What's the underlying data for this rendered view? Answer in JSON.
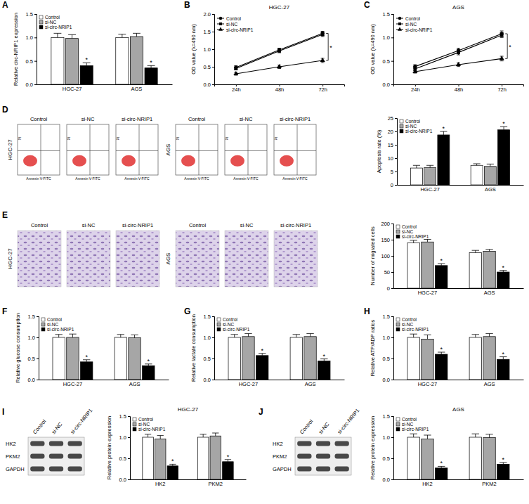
{
  "chart_data": [
    {
      "type": "bar",
      "y_label": "Relative circ-NRIP1 expression",
      "categories": [
        "HGC-27",
        "AGS"
      ],
      "ylim": [
        0,
        1.5
      ],
      "yticks": [
        {
          "value": 0,
          "label": "0.0"
        },
        0.5,
        {
          "value": 1,
          "label": "1.0"
        },
        1.5
      ],
      "legend": "upper left",
      "series": [
        {
          "name": "Control",
          "color": "#ffffff",
          "values": [
            1.0,
            1.0
          ],
          "errors": [
            0.09,
            0.07
          ]
        },
        {
          "name": "si-NC",
          "color": "#a6a6a6",
          "values": [
            0.98,
            1.02
          ],
          "errors": [
            0.08,
            0.07
          ]
        },
        {
          "name": "si-circ-NRIP1",
          "color": "#000000",
          "values": [
            0.4,
            0.35
          ],
          "errors": [
            0.06,
            0.05
          ],
          "significance": [
            "*",
            "*"
          ]
        }
      ]
    },
    {
      "type": "line",
      "title": "HGC-27",
      "y_label": "OD value (λ=490 nm)",
      "categories": [
        "24h",
        "48h",
        "72h"
      ],
      "ylim": [
        0,
        2
      ],
      "yticks": [
        {
          "value": 0,
          "label": "0.0"
        },
        0.5,
        {
          "value": 1,
          "label": "1.0"
        },
        1.5,
        {
          "value": 2,
          "label": "2.0"
        }
      ],
      "legend": "upper left",
      "series": [
        {
          "name": "Control",
          "color": "#000000",
          "marker": "circle",
          "values": [
            0.48,
            0.98,
            1.45
          ],
          "errors": [
            0.05,
            0.05,
            0.06
          ]
        },
        {
          "name": "si-NC",
          "color": "#000000",
          "marker": "square",
          "values": [
            0.45,
            0.95,
            1.42
          ],
          "errors": [
            0.04,
            0.05,
            0.06
          ]
        },
        {
          "name": "si-circ-NRIP1",
          "color": "#000000",
          "marker": "triangle",
          "values": [
            0.3,
            0.5,
            0.68
          ],
          "errors": [
            0.04,
            0.05,
            0.06
          ]
        }
      ],
      "annotations": [
        {
          "text": "*",
          "x": 2
        }
      ]
    },
    {
      "type": "line",
      "title": "AGS",
      "y_label": "OD value (λ=490 nm)",
      "categories": [
        "24h",
        "48h",
        "72h"
      ],
      "ylim": [
        0,
        1.5
      ],
      "yticks": [
        {
          "value": 0,
          "label": "0.0"
        },
        0.5,
        {
          "value": 1,
          "label": "1.0"
        },
        1.5
      ],
      "legend": "upper left",
      "series": [
        {
          "name": "Control",
          "color": "#000000",
          "marker": "circle",
          "values": [
            0.38,
            0.72,
            1.08
          ],
          "errors": [
            0.04,
            0.05,
            0.06
          ]
        },
        {
          "name": "si-NC",
          "color": "#000000",
          "marker": "square",
          "values": [
            0.33,
            0.68,
            1.05
          ],
          "errors": [
            0.04,
            0.05,
            0.05
          ]
        },
        {
          "name": "si-circ-NRIP1",
          "color": "#000000",
          "marker": "triangle",
          "values": [
            0.27,
            0.42,
            0.55
          ],
          "errors": [
            0.03,
            0.04,
            0.05
          ]
        }
      ],
      "annotations": [
        {
          "text": "*",
          "x": 2
        }
      ]
    },
    {
      "type": "bar",
      "y_label": "Apoptosis rate (%)",
      "categories": [
        "HGC-27",
        "AGS"
      ],
      "ylim": [
        0,
        25
      ],
      "yticks": [
        0,
        5,
        10,
        15,
        20,
        25
      ],
      "legend": "upper left",
      "series": [
        {
          "name": "Control",
          "color": "#ffffff",
          "values": [
            6.3,
            7.3
          ],
          "errors": [
            1.0,
            0.6
          ]
        },
        {
          "name": "si-NC",
          "color": "#a6a6a6",
          "values": [
            6.5,
            6.9
          ],
          "errors": [
            0.8,
            0.9
          ]
        },
        {
          "name": "si-circ-NRIP1",
          "color": "#000000",
          "values": [
            18.7,
            20.6
          ],
          "errors": [
            1.3,
            1.2
          ],
          "significance": [
            "*",
            "*"
          ]
        }
      ]
    },
    {
      "type": "bar",
      "y_label": "Number of migrated cells",
      "categories": [
        "HGC-27",
        "AGS"
      ],
      "ylim": [
        0,
        200
      ],
      "yticks": [
        0,
        50,
        100,
        150,
        200
      ],
      "legend": "upper left",
      "series": [
        {
          "name": "Control",
          "color": "#ffffff",
          "values": [
            140,
            110
          ],
          "errors": [
            8,
            7
          ]
        },
        {
          "name": "si-NC",
          "color": "#a6a6a6",
          "values": [
            143,
            114
          ],
          "errors": [
            8,
            6
          ]
        },
        {
          "name": "si-circ-NRIP1",
          "color": "#000000",
          "values": [
            70,
            50
          ],
          "errors": [
            6,
            5
          ],
          "significance": [
            "*",
            "*"
          ]
        }
      ]
    },
    {
      "type": "bar",
      "y_label": "Relative glucose consumption",
      "categories": [
        "HGC-27",
        "AGS"
      ],
      "ylim": [
        0,
        1.5
      ],
      "yticks": [
        {
          "value": 0,
          "label": "0.0"
        },
        0.5,
        {
          "value": 1,
          "label": "1.0"
        },
        1.5
      ],
      "legend": "upper left",
      "series": [
        {
          "name": "Control",
          "color": "#ffffff",
          "values": [
            1.0,
            1.0
          ],
          "errors": [
            0.07,
            0.07
          ]
        },
        {
          "name": "si-NC",
          "color": "#a6a6a6",
          "values": [
            1.0,
            0.99
          ],
          "errors": [
            0.08,
            0.07
          ]
        },
        {
          "name": "si-circ-NRIP1",
          "color": "#000000",
          "values": [
            0.42,
            0.33
          ],
          "errors": [
            0.05,
            0.04
          ],
          "significance": [
            "*",
            "*"
          ]
        }
      ]
    },
    {
      "type": "bar",
      "y_label": "Relative lactate consumption",
      "categories": [
        "HGC-27",
        "AGS"
      ],
      "ylim": [
        0,
        1.5
      ],
      "yticks": [
        {
          "value": 0,
          "label": "0.0"
        },
        0.5,
        {
          "value": 1,
          "label": "1.0"
        },
        1.5
      ],
      "legend": "upper left",
      "series": [
        {
          "name": "Control",
          "color": "#ffffff",
          "values": [
            1.0,
            1.0
          ],
          "errors": [
            0.07,
            0.07
          ]
        },
        {
          "name": "si-NC",
          "color": "#a6a6a6",
          "values": [
            1.02,
            1.02
          ],
          "errors": [
            0.07,
            0.07
          ]
        },
        {
          "name": "si-circ-NRIP1",
          "color": "#000000",
          "values": [
            0.57,
            0.44
          ],
          "errors": [
            0.05,
            0.05
          ],
          "significance": [
            "*",
            "*"
          ]
        }
      ]
    },
    {
      "type": "bar",
      "y_label": "Relative ATP/ADP ratios",
      "categories": [
        "HGC-27",
        "AGS"
      ],
      "ylim": [
        0,
        1.5
      ],
      "yticks": [
        {
          "value": 0,
          "label": "0.0"
        },
        0.5,
        {
          "value": 1,
          "label": "1.0"
        },
        1.5
      ],
      "legend": "upper left",
      "series": [
        {
          "name": "Control",
          "color": "#ffffff",
          "values": [
            1.0,
            1.0
          ],
          "errors": [
            0.08,
            0.07
          ]
        },
        {
          "name": "si-NC",
          "color": "#a6a6a6",
          "values": [
            0.96,
            1.02
          ],
          "errors": [
            0.1,
            0.07
          ]
        },
        {
          "name": "si-circ-NRIP1",
          "color": "#000000",
          "values": [
            0.6,
            0.48
          ],
          "errors": [
            0.05,
            0.06
          ],
          "significance": [
            "*",
            "*"
          ]
        }
      ]
    },
    {
      "type": "bar",
      "title": "HGC-27",
      "y_label": "Relative protein expression",
      "categories": [
        "HK2",
        "PKM2"
      ],
      "ylim": [
        0,
        1.5
      ],
      "yticks": [
        {
          "value": 0,
          "label": "0.0"
        },
        0.5,
        {
          "value": 1,
          "label": "1.0"
        },
        1.5
      ],
      "legend": "upper left",
      "series": [
        {
          "name": "Control",
          "color": "#ffffff",
          "values": [
            1.0,
            1.0
          ],
          "errors": [
            0.07,
            0.07
          ]
        },
        {
          "name": "si-NC",
          "color": "#a6a6a6",
          "values": [
            0.96,
            1.03
          ],
          "errors": [
            0.08,
            0.07
          ]
        },
        {
          "name": "si-circ-NRIP1",
          "color": "#000000",
          "values": [
            0.32,
            0.42
          ],
          "errors": [
            0.04,
            0.05
          ],
          "significance": [
            "*",
            "*"
          ]
        }
      ]
    },
    {
      "type": "bar",
      "title": "AGS",
      "y_label": "Relative protein expression",
      "categories": [
        "HK2",
        "PKM2"
      ],
      "ylim": [
        0,
        1.5
      ],
      "yticks": [
        {
          "value": 0,
          "label": "0.0"
        },
        0.5,
        {
          "value": 1,
          "label": "1.0"
        },
        1.5
      ],
      "legend": "upper left",
      "series": [
        {
          "name": "Control",
          "color": "#ffffff",
          "values": [
            1.0,
            1.0
          ],
          "errors": [
            0.08,
            0.08
          ]
        },
        {
          "name": "si-NC",
          "color": "#a6a6a6",
          "values": [
            0.96,
            0.99
          ],
          "errors": [
            0.09,
            0.08
          ]
        },
        {
          "name": "si-circ-NRIP1",
          "color": "#000000",
          "values": [
            0.27,
            0.36
          ],
          "errors": [
            0.04,
            0.04
          ],
          "significance": [
            "*",
            "*"
          ]
        }
      ]
    }
  ],
  "panel_labels": [
    "A",
    "B",
    "C",
    "D",
    "E",
    "F",
    "G",
    "H",
    "I",
    "J"
  ],
  "flow_cytometry": {
    "x_label": "Annexin V-FITC",
    "y_label": "PI",
    "panels": [
      {
        "cell_line": "HGC-27",
        "groups": [
          "Control",
          "si-NC",
          "si-circ-NRIP1"
        ]
      },
      {
        "cell_line": "AGS",
        "groups": [
          "Control",
          "si-NC",
          "si-circ-NRIP1"
        ]
      }
    ]
  },
  "transwell": {
    "panels": [
      {
        "cell_line": "HGC-27",
        "groups": [
          "Control",
          "si-NC",
          "si-circ-NRIP1"
        ]
      },
      {
        "cell_line": "AGS",
        "groups": [
          "Control",
          "si-NC",
          "si-circ-NRIP1"
        ]
      }
    ]
  },
  "western_blots": [
    {
      "lanes": [
        "Control",
        "si-NC",
        "si-circ-NRIP1"
      ],
      "rows": [
        "HK2",
        "PKM2",
        "GAPDH"
      ]
    },
    {
      "lanes": [
        "Control",
        "si-NC",
        "si-circ-NRIP1"
      ],
      "rows": [
        "HK2",
        "PKM2",
        "GAPDH"
      ]
    }
  ]
}
